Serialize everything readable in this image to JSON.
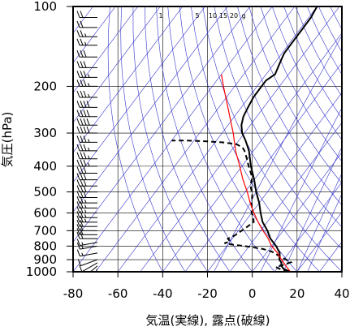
{
  "chart_data": {
    "type": "skew-t log-p sounding",
    "xlabel": "気温(実線), 露点(破線)",
    "ylabel": "気圧(hPa)",
    "x_ticks": [
      -80,
      -60,
      -40,
      -20,
      0,
      20,
      40
    ],
    "y_ticks": [
      100,
      200,
      300,
      400,
      500,
      600,
      700,
      800,
      900,
      1000
    ],
    "y_scale": "log",
    "mixing_ratio_labels": [
      "1",
      "5",
      "10",
      "15",
      "20",
      "g"
    ],
    "colors": {
      "frame": "#000000",
      "isotherm": "#3333cc",
      "parcel": "#ff0000",
      "profile": "#000000"
    },
    "series": [
      {
        "role": "temperature",
        "style": "solid",
        "points": [
          [
            1000,
            17
          ],
          [
            975,
            13
          ],
          [
            950,
            11
          ],
          [
            925,
            10
          ],
          [
            900,
            8
          ],
          [
            850,
            6
          ],
          [
            800,
            2
          ],
          [
            750,
            -3
          ],
          [
            700,
            -7
          ],
          [
            650,
            -12
          ],
          [
            600,
            -16
          ],
          [
            550,
            -20
          ],
          [
            500,
            -25
          ],
          [
            450,
            -30
          ],
          [
            400,
            -36
          ],
          [
            350,
            -42
          ],
          [
            320,
            -47
          ],
          [
            300,
            -51
          ],
          [
            280,
            -54
          ],
          [
            260,
            -56
          ],
          [
            240,
            -57
          ],
          [
            220,
            -58
          ],
          [
            200,
            -58
          ],
          [
            190,
            -58
          ],
          [
            180,
            -56
          ],
          [
            170,
            -57
          ],
          [
            160,
            -58
          ],
          [
            150,
            -59
          ],
          [
            140,
            -59
          ],
          [
            130,
            -59
          ],
          [
            120,
            -59
          ],
          [
            110,
            -59
          ],
          [
            100,
            -60
          ]
        ]
      },
      {
        "role": "dewpoint",
        "style": "dashed",
        "points": [
          [
            1000,
            16
          ],
          [
            980,
            12
          ],
          [
            960,
            9
          ],
          [
            940,
            12
          ],
          [
            920,
            14
          ],
          [
            900,
            11
          ],
          [
            880,
            8
          ],
          [
            860,
            5
          ],
          [
            840,
            2
          ],
          [
            820,
            -3
          ],
          [
            800,
            -12
          ],
          [
            790,
            -18
          ],
          [
            780,
            -22
          ],
          [
            770,
            -20
          ],
          [
            760,
            -21
          ],
          [
            750,
            -22
          ],
          [
            730,
            -20
          ],
          [
            710,
            -19
          ],
          [
            690,
            -18
          ],
          [
            670,
            -17
          ],
          [
            650,
            -16
          ],
          [
            620,
            -18
          ],
          [
            600,
            -20
          ],
          [
            570,
            -22
          ],
          [
            540,
            -24
          ],
          [
            510,
            -26
          ],
          [
            490,
            -28
          ],
          [
            470,
            -30
          ],
          [
            450,
            -31
          ],
          [
            430,
            -33
          ],
          [
            400,
            -37
          ],
          [
            370,
            -41
          ],
          [
            350,
            -44
          ],
          [
            340,
            -46
          ],
          [
            330,
            -50
          ],
          [
            325,
            -57
          ],
          [
            322,
            -65
          ],
          [
            320,
            -74
          ],
          [
            320,
            -80
          ]
        ]
      },
      {
        "role": "parcel",
        "style": "solid",
        "points": [
          [
            1000,
            17
          ],
          [
            950,
            13
          ],
          [
            900,
            9
          ],
          [
            850,
            5
          ],
          [
            800,
            0
          ],
          [
            750,
            -4
          ],
          [
            700,
            -9
          ],
          [
            650,
            -14
          ],
          [
            600,
            -19
          ],
          [
            550,
            -24
          ],
          [
            500,
            -29
          ],
          [
            450,
            -35
          ],
          [
            400,
            -41
          ],
          [
            350,
            -48
          ],
          [
            300,
            -55
          ],
          [
            250,
            -64
          ],
          [
            200,
            -75
          ],
          [
            180,
            -80
          ]
        ]
      }
    ],
    "wind_barbs": [
      {
        "p": 1000,
        "dir": 200,
        "spd": 5
      },
      {
        "p": 975,
        "dir": 210,
        "spd": 5
      },
      {
        "p": 950,
        "dir": 230,
        "spd": 10
      },
      {
        "p": 925,
        "dir": 240,
        "spd": 10
      },
      {
        "p": 900,
        "dir": 250,
        "spd": 10
      },
      {
        "p": 850,
        "dir": 260,
        "spd": 15
      },
      {
        "p": 800,
        "dir": 260,
        "spd": 15
      },
      {
        "p": 775,
        "dir": 260,
        "spd": 15
      },
      {
        "p": 750,
        "dir": 270,
        "spd": 20
      },
      {
        "p": 725,
        "dir": 270,
        "spd": 20
      },
      {
        "p": 700,
        "dir": 270,
        "spd": 20
      },
      {
        "p": 675,
        "dir": 270,
        "spd": 20
      },
      {
        "p": 650,
        "dir": 270,
        "spd": 25
      },
      {
        "p": 625,
        "dir": 270,
        "spd": 25
      },
      {
        "p": 600,
        "dir": 270,
        "spd": 25
      },
      {
        "p": 575,
        "dir": 270,
        "spd": 25
      },
      {
        "p": 550,
        "dir": 270,
        "spd": 25
      },
      {
        "p": 525,
        "dir": 270,
        "spd": 30
      },
      {
        "p": 500,
        "dir": 270,
        "spd": 30
      },
      {
        "p": 475,
        "dir": 270,
        "spd": 30
      },
      {
        "p": 450,
        "dir": 270,
        "spd": 30
      },
      {
        "p": 425,
        "dir": 270,
        "spd": 30
      },
      {
        "p": 400,
        "dir": 270,
        "spd": 35
      },
      {
        "p": 375,
        "dir": 270,
        "spd": 35
      },
      {
        "p": 350,
        "dir": 270,
        "spd": 35
      },
      {
        "p": 325,
        "dir": 270,
        "spd": 35
      },
      {
        "p": 300,
        "dir": 270,
        "spd": 40
      },
      {
        "p": 280,
        "dir": 270,
        "spd": 40
      },
      {
        "p": 260,
        "dir": 270,
        "spd": 40
      },
      {
        "p": 240,
        "dir": 270,
        "spd": 40
      },
      {
        "p": 220,
        "dir": 270,
        "spd": 35
      },
      {
        "p": 200,
        "dir": 270,
        "spd": 35
      },
      {
        "p": 185,
        "dir": 270,
        "spd": 35
      },
      {
        "p": 170,
        "dir": 270,
        "spd": 30
      },
      {
        "p": 155,
        "dir": 270,
        "spd": 30
      },
      {
        "p": 140,
        "dir": 270,
        "spd": 25
      },
      {
        "p": 130,
        "dir": 270,
        "spd": 25
      },
      {
        "p": 120,
        "dir": 270,
        "spd": 20
      },
      {
        "p": 110,
        "dir": 270,
        "spd": 20
      },
      {
        "p": 100,
        "dir": 270,
        "spd": 15
      }
    ]
  }
}
